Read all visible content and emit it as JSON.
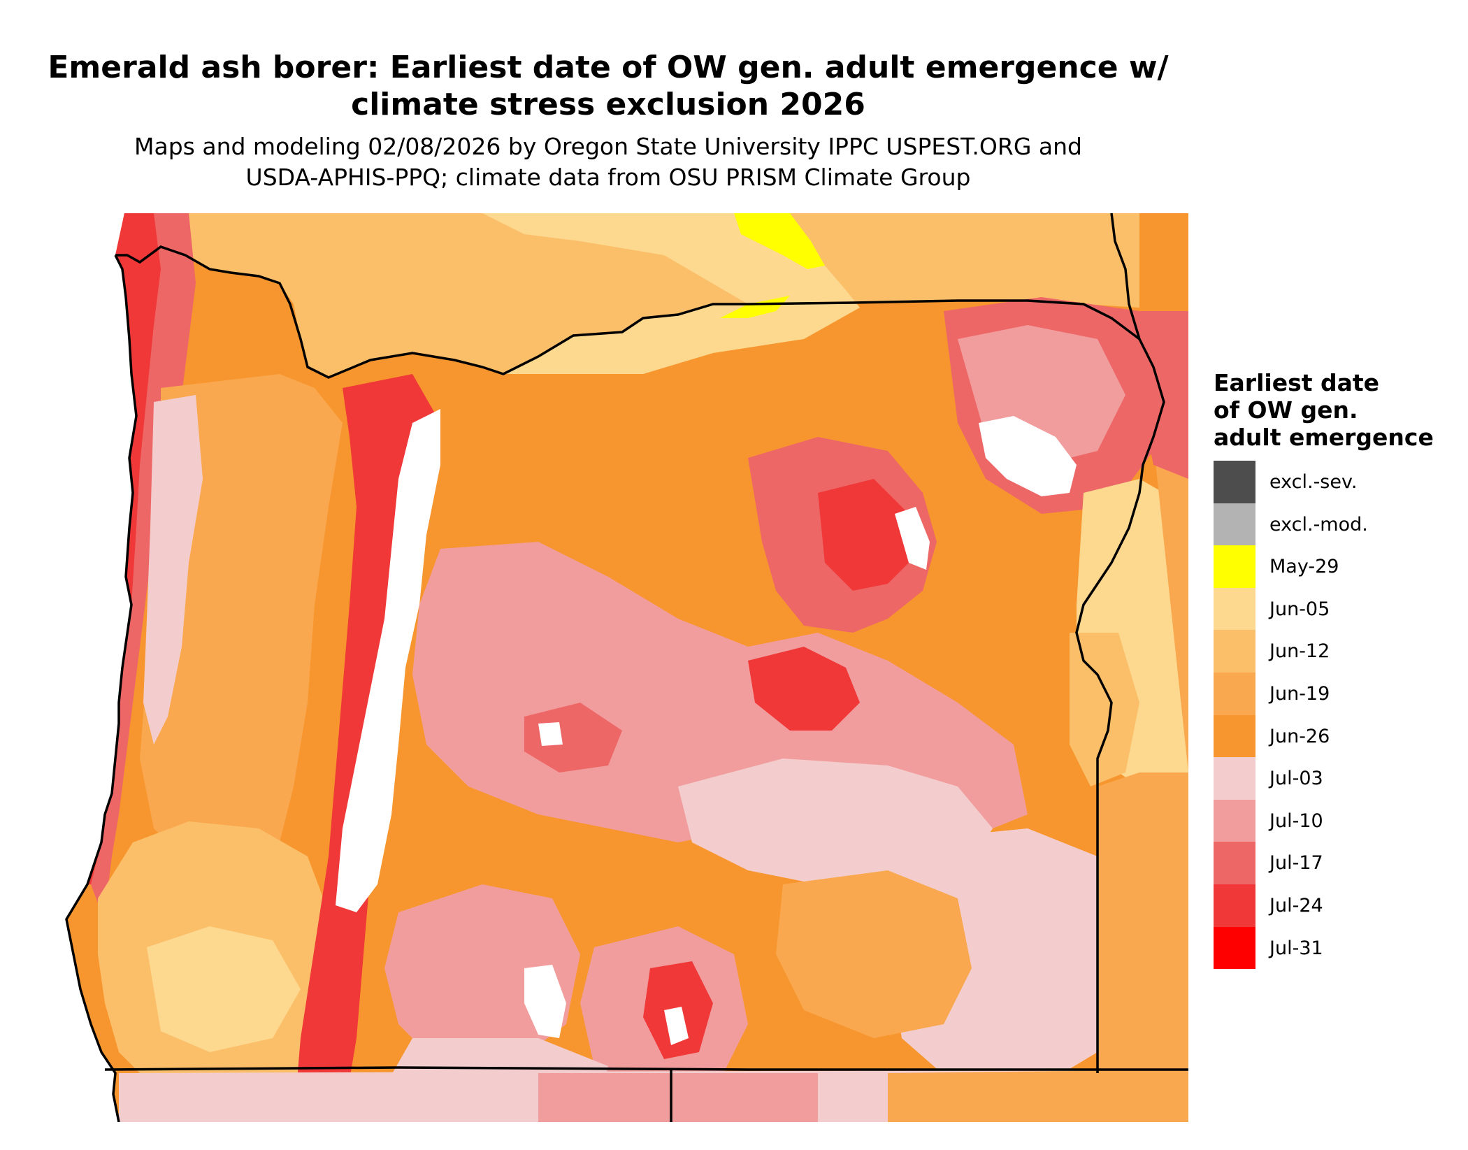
{
  "title": {
    "line1": "Emerald ash borer: Earliest date of OW gen. adult emergence w/",
    "line2": "climate stress exclusion 2026"
  },
  "subtitle": {
    "line1": "Maps and modeling 02/08/2026 by Oregon State University IPPC USPEST.ORG and",
    "line2": "USDA-APHIS-PPQ; climate data from OSU PRISM Climate Group"
  },
  "legend": {
    "title_lines": [
      "Earliest date",
      "of OW gen.",
      "adult emergence"
    ],
    "items": [
      {
        "label": "excl.-sev.",
        "color": "#4d4d4d"
      },
      {
        "label": "excl.-mod.",
        "color": "#b3b3b3"
      },
      {
        "label": "May-29",
        "color": "#ffff00"
      },
      {
        "label": "Jun-05",
        "color": "#fdd88f"
      },
      {
        "label": "Jun-12",
        "color": "#fbbf6a"
      },
      {
        "label": "Jun-19",
        "color": "#f9a84f"
      },
      {
        "label": "Jun-26",
        "color": "#f7962e"
      },
      {
        "label": "Jul-03",
        "color": "#f3cdcd"
      },
      {
        "label": "Jul-10",
        "color": "#f19d9d"
      },
      {
        "label": "Jul-17",
        "color": "#ee6767"
      },
      {
        "label": "Jul-24",
        "color": "#f03838"
      },
      {
        "label": "Jul-31",
        "color": "#ff0000"
      }
    ]
  },
  "map": {
    "region": "Oregon",
    "border_color": "#000000",
    "no_data_color": "#ffffff"
  }
}
